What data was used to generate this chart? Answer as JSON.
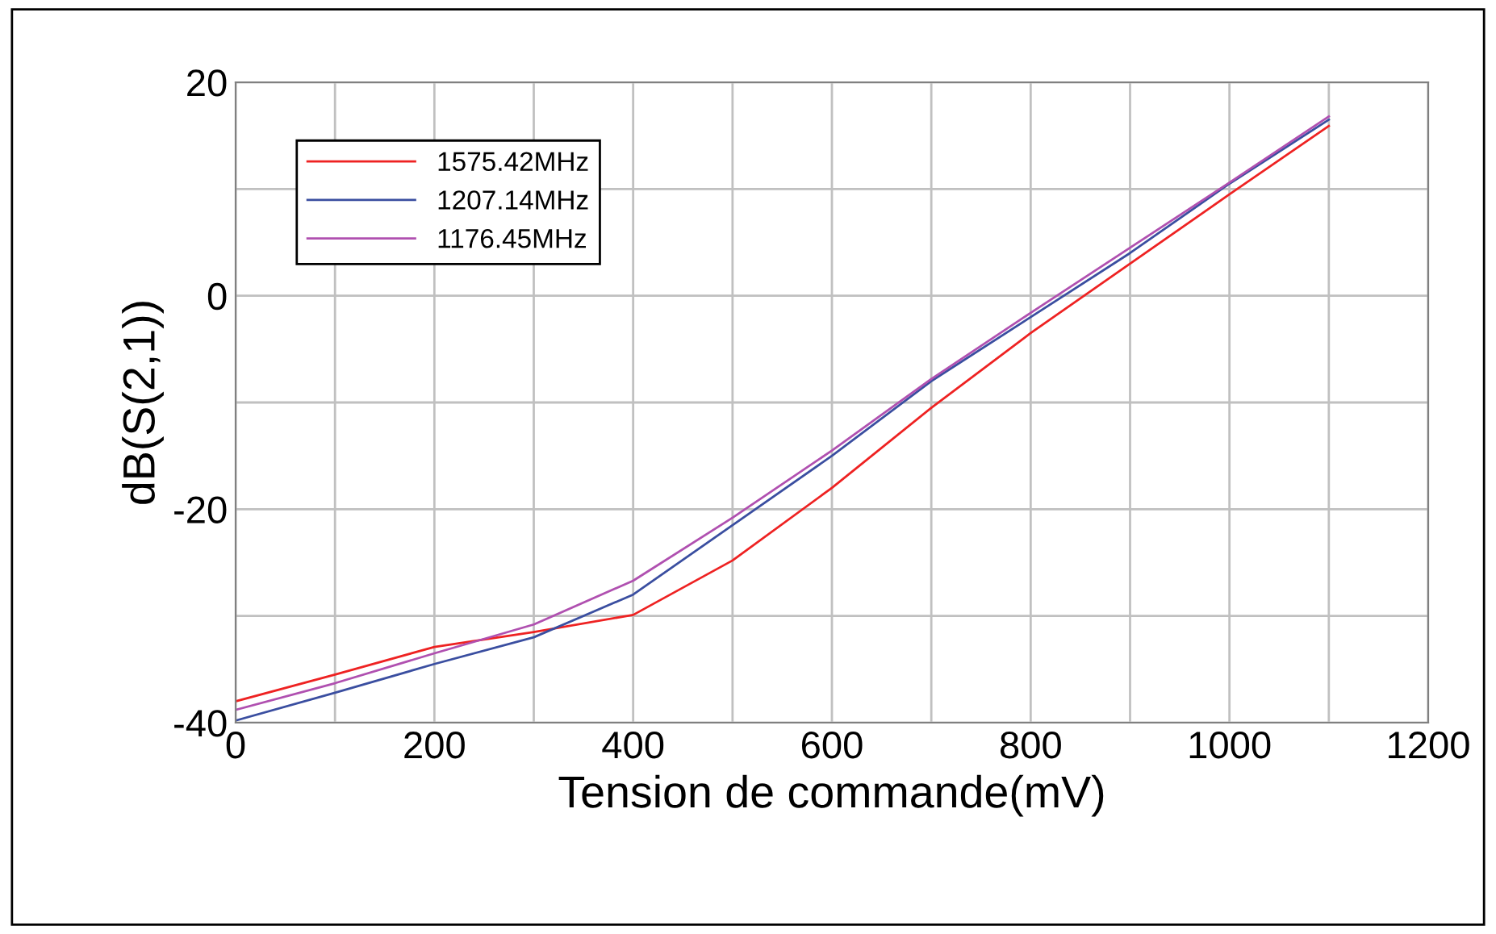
{
  "chart_data": {
    "type": "line",
    "xlabel": "Tension de commande(mV)",
    "ylabel": "dB(S(2,1))",
    "x": [
      0,
      100,
      200,
      300,
      400,
      500,
      600,
      700,
      800,
      900,
      1000,
      1100
    ],
    "series": [
      {
        "name": "1575.42MHz",
        "color": "#ee2222",
        "values": [
          -38,
          -35.5,
          -32.9,
          -31.5,
          -29.9,
          -24.8,
          -18,
          -10.5,
          -3.5,
          3,
          9.5,
          15.9
        ]
      },
      {
        "name": "1207.14MHz",
        "color": "#3a4ea0",
        "values": [
          -39.8,
          -37.2,
          -34.5,
          -32,
          -28,
          -21.5,
          -15,
          -8,
          -2,
          4,
          10.5,
          16.5
        ]
      },
      {
        "name": "1176.45MHz",
        "color": "#b050b0",
        "values": [
          -38.8,
          -36.3,
          -33.5,
          -30.8,
          -26.7,
          -20.8,
          -14.5,
          -7.8,
          -1.6,
          4.5,
          10.6,
          16.8
        ]
      }
    ],
    "xlim": [
      0,
      1200
    ],
    "xticks": [
      0,
      {
        "value": 100,
        "label": null
      },
      200,
      {
        "value": 300,
        "label": null
      },
      400,
      {
        "value": 500,
        "label": null
      },
      600,
      {
        "value": 700,
        "label": null
      },
      800,
      {
        "value": 900,
        "label": null
      },
      1000,
      {
        "value": 1100,
        "label": null
      },
      1200
    ],
    "ylim": [
      -40,
      20
    ],
    "yticks": [
      -40,
      {
        "value": -30,
        "label": null
      },
      -20,
      {
        "value": -10,
        "label": null
      },
      0,
      {
        "value": 10,
        "label": null
      },
      20
    ],
    "grid": true,
    "legend": "top left",
    "marker": "none",
    "line_style": "solid"
  }
}
